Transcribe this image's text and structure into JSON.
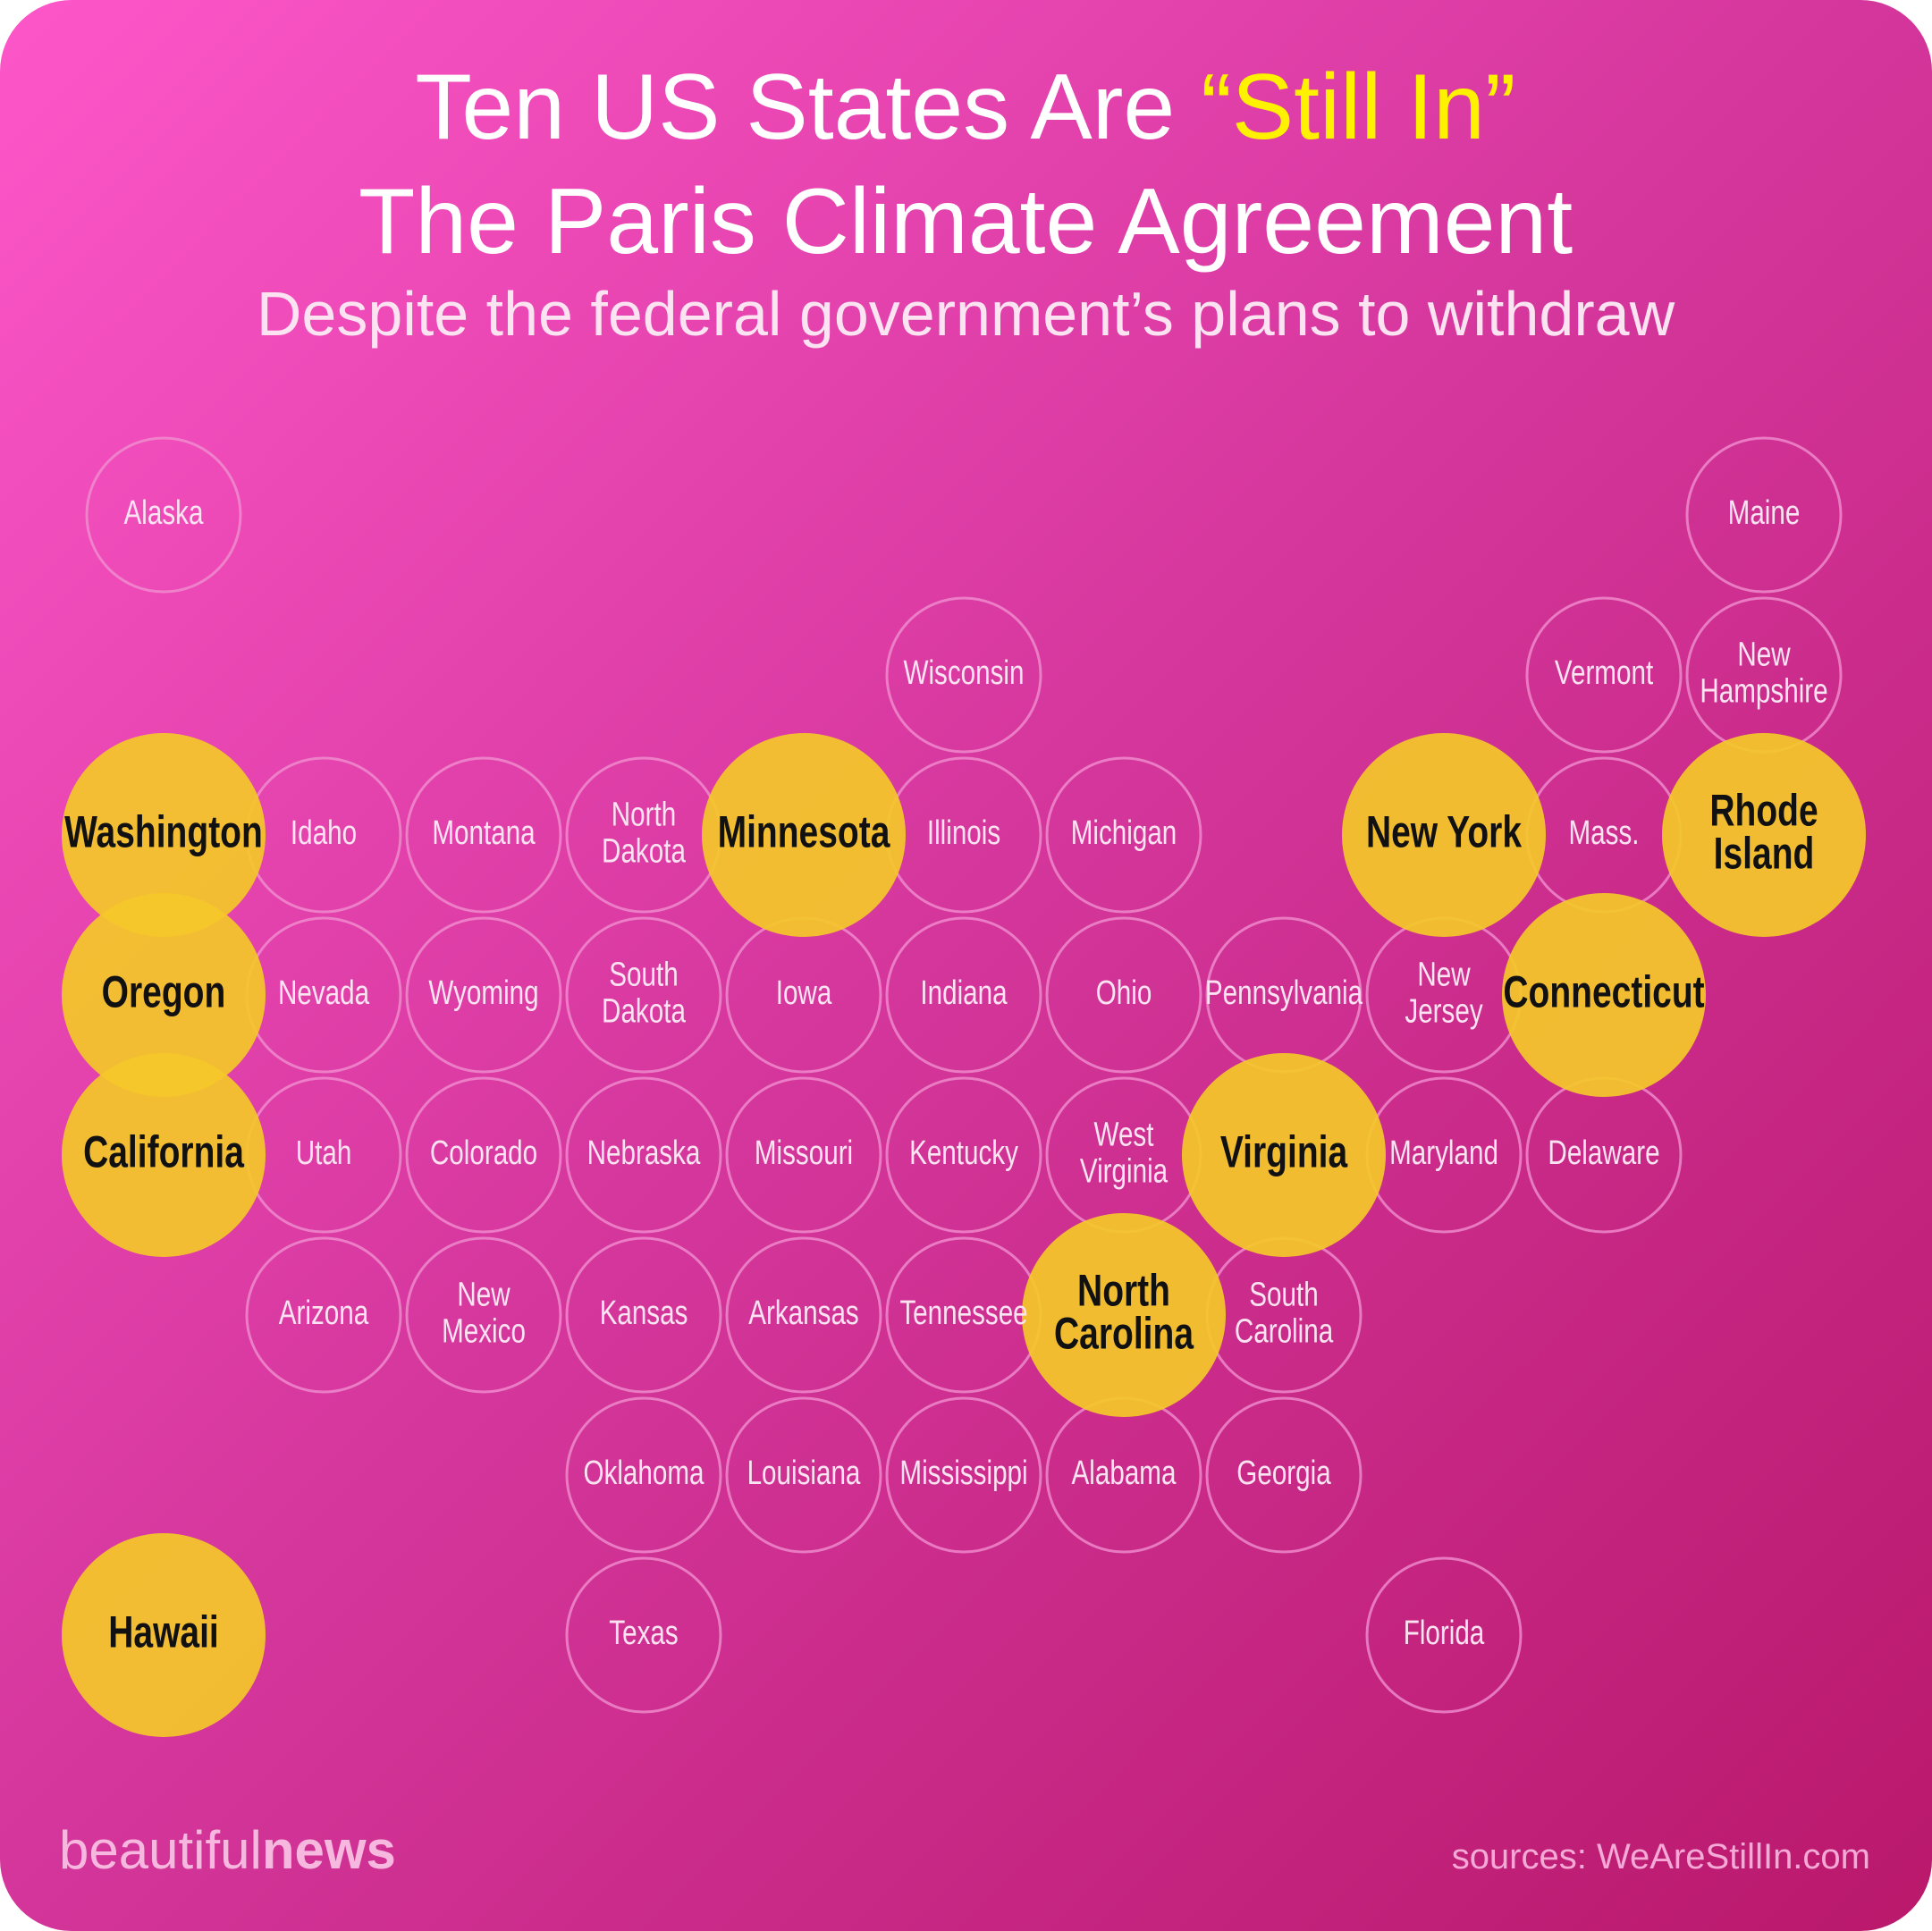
{
  "header": {
    "title_start": "Ten US States Are",
    "title_highlight": "“Still In”",
    "title_line2": "The Paris Climate Agreement",
    "subtitle": "Despite the federal government’s plans to withdraw"
  },
  "states": [
    {
      "label": [
        "Alaska"
      ],
      "still_in": false
    },
    {
      "label": [
        "Maine"
      ],
      "still_in": false
    },
    {
      "label": [
        "Wisconsin"
      ],
      "still_in": false
    },
    {
      "label": [
        "Vermont"
      ],
      "still_in": false
    },
    {
      "label": [
        "New",
        "Hampshire"
      ],
      "still_in": false
    },
    {
      "label": [
        "Washington"
      ],
      "still_in": true
    },
    {
      "label": [
        "Idaho"
      ],
      "still_in": false
    },
    {
      "label": [
        "Montana"
      ],
      "still_in": false
    },
    {
      "label": [
        "North",
        "Dakota"
      ],
      "still_in": false
    },
    {
      "label": [
        "Minnesota"
      ],
      "still_in": true
    },
    {
      "label": [
        "Illinois"
      ],
      "still_in": false
    },
    {
      "label": [
        "Michigan"
      ],
      "still_in": false
    },
    {
      "label": [
        "New York"
      ],
      "still_in": true
    },
    {
      "label": [
        "Mass."
      ],
      "still_in": false
    },
    {
      "label": [
        "Rhode",
        "Island"
      ],
      "still_in": true
    },
    {
      "label": [
        "Oregon"
      ],
      "still_in": true
    },
    {
      "label": [
        "Nevada"
      ],
      "still_in": false
    },
    {
      "label": [
        "Wyoming"
      ],
      "still_in": false
    },
    {
      "label": [
        "South",
        "Dakota"
      ],
      "still_in": false
    },
    {
      "label": [
        "Iowa"
      ],
      "still_in": false
    },
    {
      "label": [
        "Indiana"
      ],
      "still_in": false
    },
    {
      "label": [
        "Ohio"
      ],
      "still_in": false
    },
    {
      "label": [
        "Pennsylvania"
      ],
      "still_in": false
    },
    {
      "label": [
        "New",
        "Jersey"
      ],
      "still_in": false
    },
    {
      "label": [
        "Connecticut"
      ],
      "still_in": true
    },
    {
      "label": [
        "California"
      ],
      "still_in": true
    },
    {
      "label": [
        "Utah"
      ],
      "still_in": false
    },
    {
      "label": [
        "Colorado"
      ],
      "still_in": false
    },
    {
      "label": [
        "Nebraska"
      ],
      "still_in": false
    },
    {
      "label": [
        "Missouri"
      ],
      "still_in": false
    },
    {
      "label": [
        "Kentucky"
      ],
      "still_in": false
    },
    {
      "label": [
        "West",
        "Virginia"
      ],
      "still_in": false
    },
    {
      "label": [
        "Virginia"
      ],
      "still_in": true
    },
    {
      "label": [
        "Maryland"
      ],
      "still_in": false
    },
    {
      "label": [
        "Delaware"
      ],
      "still_in": false
    },
    {
      "label": [
        "Arizona"
      ],
      "still_in": false
    },
    {
      "label": [
        "New",
        "Mexico"
      ],
      "still_in": false
    },
    {
      "label": [
        "Kansas"
      ],
      "still_in": false
    },
    {
      "label": [
        "Arkansas"
      ],
      "still_in": false
    },
    {
      "label": [
        "Tennessee"
      ],
      "still_in": false
    },
    {
      "label": [
        "North",
        "Carolina"
      ],
      "still_in": true
    },
    {
      "label": [
        "South",
        "Carolina"
      ],
      "still_in": false
    },
    {
      "label": [
        "Oklahoma"
      ],
      "still_in": false
    },
    {
      "label": [
        "Louisiana"
      ],
      "still_in": false
    },
    {
      "label": [
        "Mississippi"
      ],
      "still_in": false
    },
    {
      "label": [
        "Alabama"
      ],
      "still_in": false
    },
    {
      "label": [
        "Georgia"
      ],
      "still_in": false
    },
    {
      "label": [
        "Hawaii"
      ],
      "still_in": true
    },
    {
      "label": [
        "Texas"
      ],
      "still_in": false
    },
    {
      "label": [
        "Florida"
      ],
      "still_in": false
    }
  ],
  "footer": {
    "brand_light": "beautiful",
    "brand_bold": "news",
    "source": "sources: WeAreStillIn.com"
  }
}
